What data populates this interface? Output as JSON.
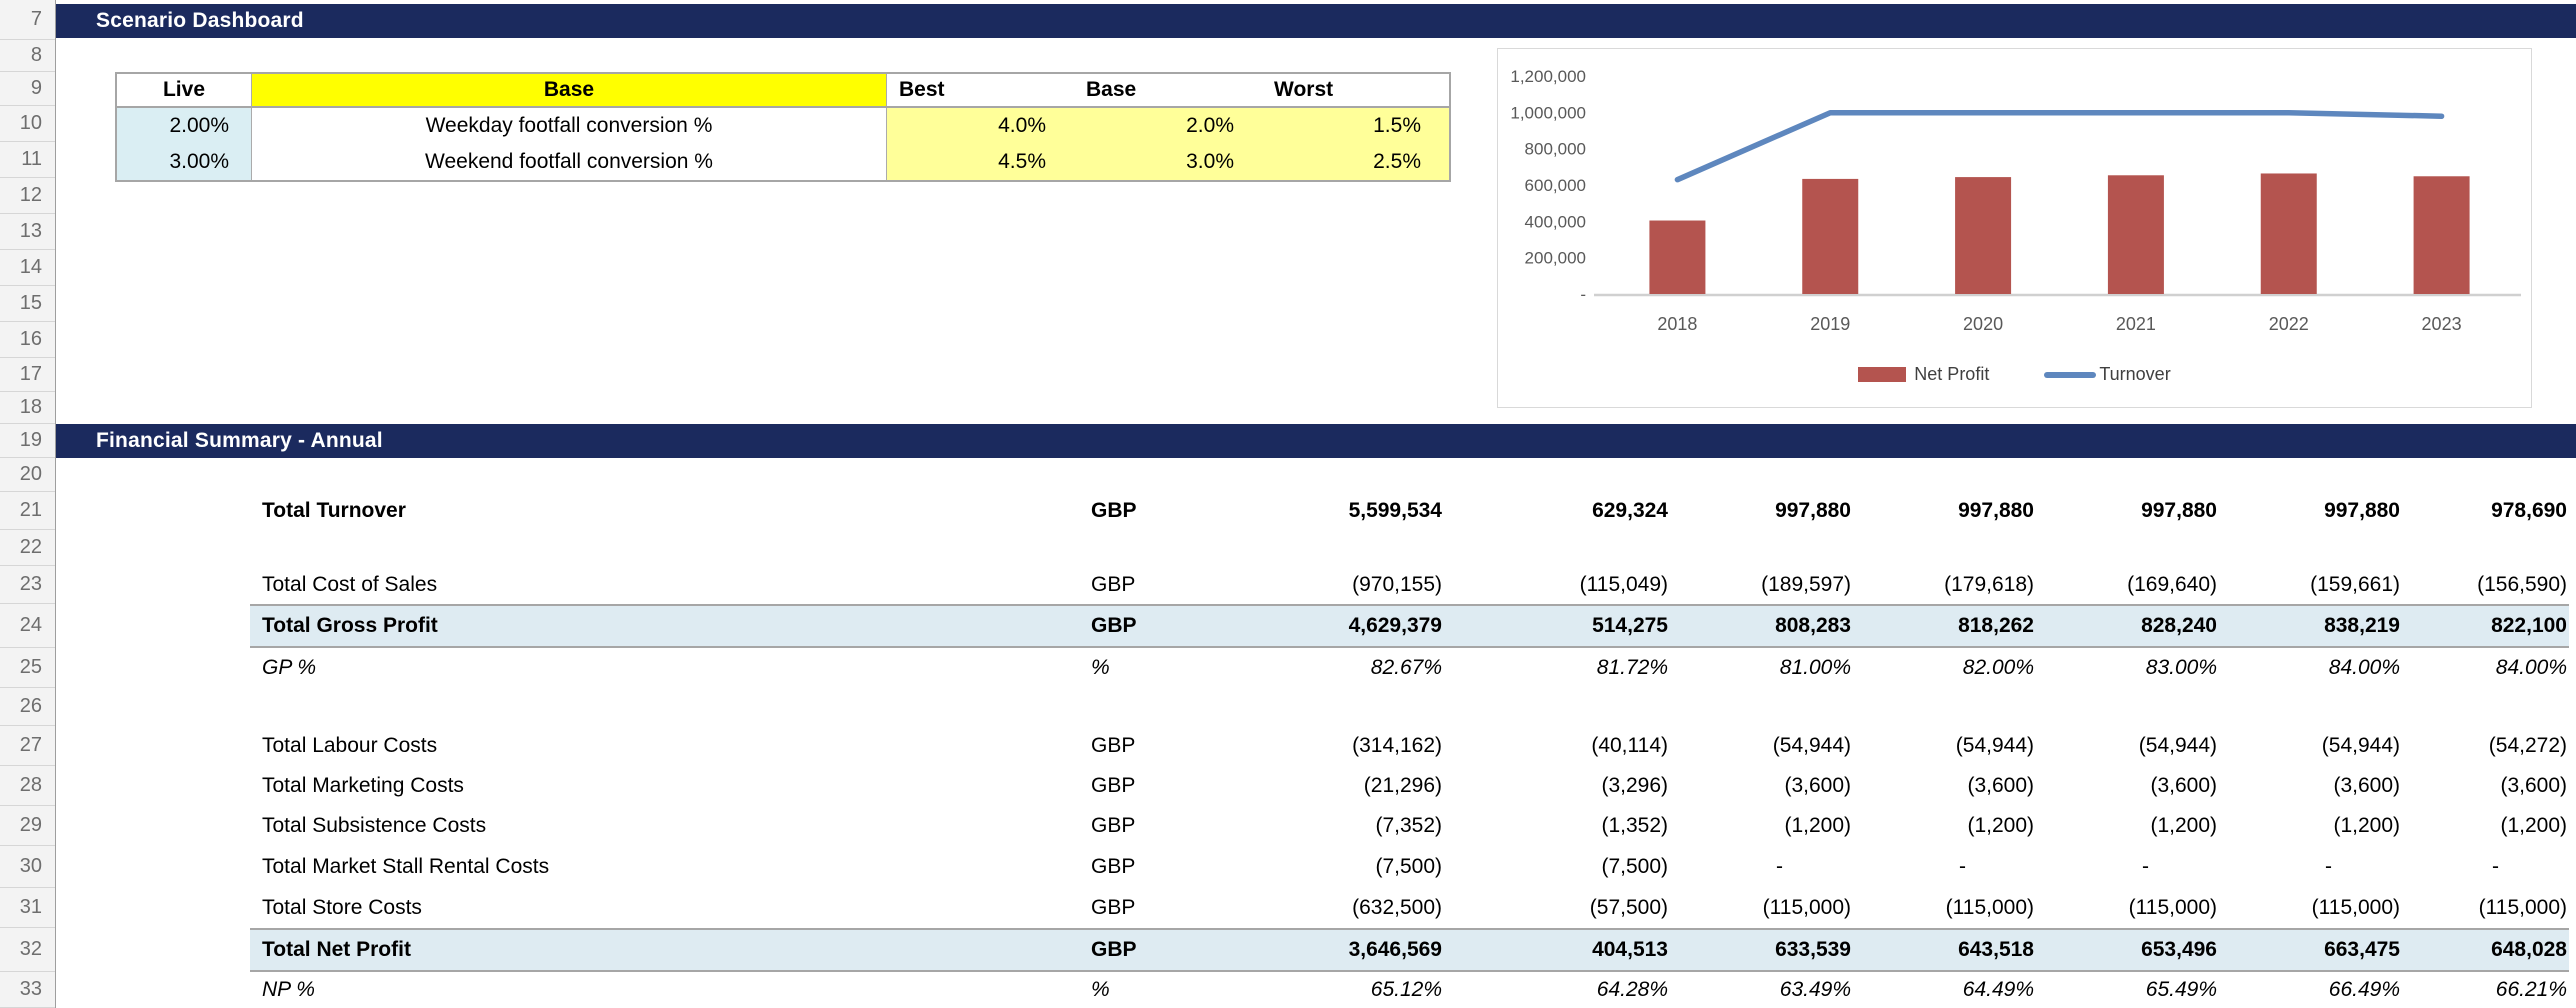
{
  "row_numbers": [
    "7",
    "8",
    "9",
    "10",
    "11",
    "12",
    "13",
    "14",
    "15",
    "16",
    "17",
    "18",
    "19",
    "20",
    "21",
    "22",
    "23",
    "24",
    "25",
    "26",
    "27",
    "28",
    "29",
    "30",
    "31",
    "32",
    "33"
  ],
  "scenario_dashboard": {
    "title": "Scenario Dashboard",
    "table": {
      "live_header": "Live",
      "base_header": "Base",
      "scenario_headers": [
        "Best",
        "Base",
        "Worst"
      ],
      "rows": [
        {
          "live": "2.00%",
          "label": "Weekday footfall conversion %",
          "values": [
            "4.0%",
            "2.0%",
            "1.5%"
          ]
        },
        {
          "live": "3.00%",
          "label": "Weekend footfall conversion %",
          "values": [
            "4.5%",
            "3.0%",
            "2.5%"
          ]
        }
      ]
    }
  },
  "chart_data": {
    "type": "bar",
    "categories": [
      "2018",
      "2019",
      "2020",
      "2021",
      "2022",
      "2023"
    ],
    "series": [
      {
        "name": "Net Profit",
        "type": "bar",
        "color": "#B4544F",
        "values": [
          404513,
          633539,
          643518,
          653496,
          663475,
          648028
        ]
      },
      {
        "name": "Turnover",
        "type": "line",
        "color": "#5E87BE",
        "values": [
          629324,
          997880,
          997880,
          997880,
          997880,
          978690
        ]
      }
    ],
    "title": "",
    "xlabel": "",
    "ylabel": "",
    "ylim": [
      0,
      1200000
    ],
    "ytick_interval": 200000,
    "ytick_labels": [
      "-",
      "200,000",
      "400,000",
      "600,000",
      "800,000",
      "1,000,000",
      "1,200,000"
    ],
    "grid": false,
    "legend_position": "bottom"
  },
  "financial_summary": {
    "title": "Financial Summary - Annual",
    "rows": [
      {
        "label": "Total Turnover",
        "unit": "GBP",
        "style": "bold",
        "highlight": false,
        "values": [
          "5,599,534",
          "629,324",
          "997,880",
          "997,880",
          "997,880",
          "997,880",
          "978,690"
        ]
      },
      {
        "label": "Total Cost of Sales",
        "unit": "GBP",
        "style": "regular",
        "highlight": false,
        "values": [
          "(970,155)",
          "(115,049)",
          "(189,597)",
          "(179,618)",
          "(169,640)",
          "(159,661)",
          "(156,590)"
        ]
      },
      {
        "label": "Total Gross Profit",
        "unit": "GBP",
        "style": "bold",
        "highlight": true,
        "values": [
          "4,629,379",
          "514,275",
          "808,283",
          "818,262",
          "828,240",
          "838,219",
          "822,100"
        ]
      },
      {
        "label": "GP %",
        "unit": "%",
        "style": "italic",
        "highlight": false,
        "values": [
          "82.67%",
          "81.72%",
          "81.00%",
          "82.00%",
          "83.00%",
          "84.00%",
          "84.00%"
        ]
      },
      {
        "label": "Total Labour Costs",
        "unit": "GBP",
        "style": "regular",
        "highlight": false,
        "values": [
          "(314,162)",
          "(40,114)",
          "(54,944)",
          "(54,944)",
          "(54,944)",
          "(54,944)",
          "(54,272)"
        ]
      },
      {
        "label": "Total Marketing Costs",
        "unit": "GBP",
        "style": "regular",
        "highlight": false,
        "values": [
          "(21,296)",
          "(3,296)",
          "(3,600)",
          "(3,600)",
          "(3,600)",
          "(3,600)",
          "(3,600)"
        ]
      },
      {
        "label": "Total Subsistence Costs",
        "unit": "GBP",
        "style": "regular",
        "highlight": false,
        "values": [
          "(7,352)",
          "(1,352)",
          "(1,200)",
          "(1,200)",
          "(1,200)",
          "(1,200)",
          "(1,200)"
        ]
      },
      {
        "label": "Total Market Stall Rental Costs",
        "unit": "GBP",
        "style": "regular",
        "highlight": false,
        "values": [
          "(7,500)",
          "(7,500)",
          "-",
          "-",
          "-",
          "-",
          "-"
        ]
      },
      {
        "label": "Total Store Costs",
        "unit": "GBP",
        "style": "regular",
        "highlight": false,
        "values": [
          "(632,500)",
          "(57,500)",
          "(115,000)",
          "(115,000)",
          "(115,000)",
          "(115,000)",
          "(115,000)"
        ]
      },
      {
        "label": "Total Net Profit",
        "unit": "GBP",
        "style": "bold",
        "highlight": true,
        "values": [
          "3,646,569",
          "404,513",
          "633,539",
          "643,518",
          "653,496",
          "663,475",
          "648,028"
        ]
      },
      {
        "label": "NP %",
        "unit": "%",
        "style": "italic",
        "highlight": false,
        "values": [
          "65.12%",
          "64.28%",
          "63.49%",
          "64.49%",
          "65.49%",
          "66.49%",
          "66.21%"
        ]
      }
    ]
  },
  "colors": {
    "banner_navy": "#1B2A5E",
    "header_yellow": "#FFFF00",
    "cell_light_yellow": "#FFFF99",
    "cell_light_blue": "#DAEEF3",
    "total_row_highlight": "#DEEBF2",
    "bar_red": "#B4544F",
    "line_blue": "#5E87BE"
  }
}
